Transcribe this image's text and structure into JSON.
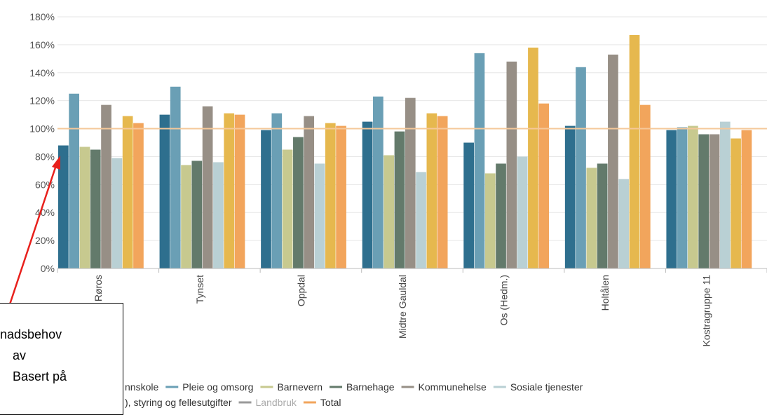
{
  "chart_data": {
    "type": "bar",
    "y_ticks": [
      "0%",
      "20%",
      "40%",
      "60%",
      "80%",
      "100%",
      "120%",
      "140%",
      "160%",
      "180%"
    ],
    "ylim": [
      0,
      180
    ],
    "reference_line": 100,
    "reference_line_color": "#f5c89a",
    "grid": true,
    "legend_placement": "bottom",
    "categories": [
      "Røros",
      "Tynset",
      "Oppdal",
      "Midtre Gauldal",
      "Os (Hedm.)",
      "Holtålen",
      "Kostragruppe 11"
    ],
    "series": [
      {
        "name": "Grunnskole",
        "color": "#2e6f8e",
        "values": [
          88,
          110,
          99,
          105,
          90,
          102,
          99
        ]
      },
      {
        "name": "Pleie og omsorg",
        "color": "#6a9fb5",
        "values": [
          125,
          130,
          111,
          123,
          154,
          144,
          101
        ]
      },
      {
        "name": "Barnevern",
        "color": "#c7c98f",
        "values": [
          87,
          74,
          85,
          81,
          68,
          72,
          102
        ]
      },
      {
        "name": "Barnehage",
        "color": "#637a6b",
        "values": [
          85,
          77,
          94,
          98,
          75,
          75,
          96
        ]
      },
      {
        "name": "Kommunehelse",
        "color": "#978f86",
        "values": [
          117,
          116,
          109,
          122,
          148,
          153,
          96
        ]
      },
      {
        "name": "Sosiale tjenester",
        "color": "#b9d0d4",
        "values": [
          79,
          76,
          75,
          69,
          80,
          64,
          105
        ]
      },
      {
        "name": "Administrasjon, styring og fellesutgifter",
        "color": "#e6b84e",
        "values": [
          109,
          111,
          104,
          111,
          158,
          167,
          93
        ]
      },
      {
        "name": "Landbruk",
        "color": "#9a9a9a",
        "values": [
          0,
          0,
          0,
          0,
          0,
          0,
          0
        ]
      },
      {
        "name": "Total",
        "color": "#f2a55c",
        "values": [
          104,
          110,
          102,
          109,
          118,
          117,
          99
        ]
      }
    ]
  },
  "legend": {
    "row1": [
      {
        "text": "nnskole",
        "color": "#2e6f8e"
      },
      {
        "text": "Pleie og omsorg",
        "color": "#6a9fb5"
      },
      {
        "text": "Barnevern",
        "color": "#c7c98f"
      },
      {
        "text": "Barnehage",
        "color": "#637a6b"
      },
      {
        "text": "Kommunehelse",
        "color": "#978f86"
      },
      {
        "text": "Sosiale tjenester",
        "color": "#b9d0d4"
      }
    ],
    "row2": [
      {
        "text": "), styring og fellesutgifter",
        "color": "#e6b84e"
      },
      {
        "text": "Landbruk",
        "color": "#9a9a9a",
        "dim": true
      },
      {
        "text": "Total",
        "color": "#f2a55c"
      }
    ]
  },
  "annotation": {
    "line1": "nadsbehov",
    "line2": "av",
    "line3": "Basert på",
    "arrow_color": "#e8201c"
  }
}
